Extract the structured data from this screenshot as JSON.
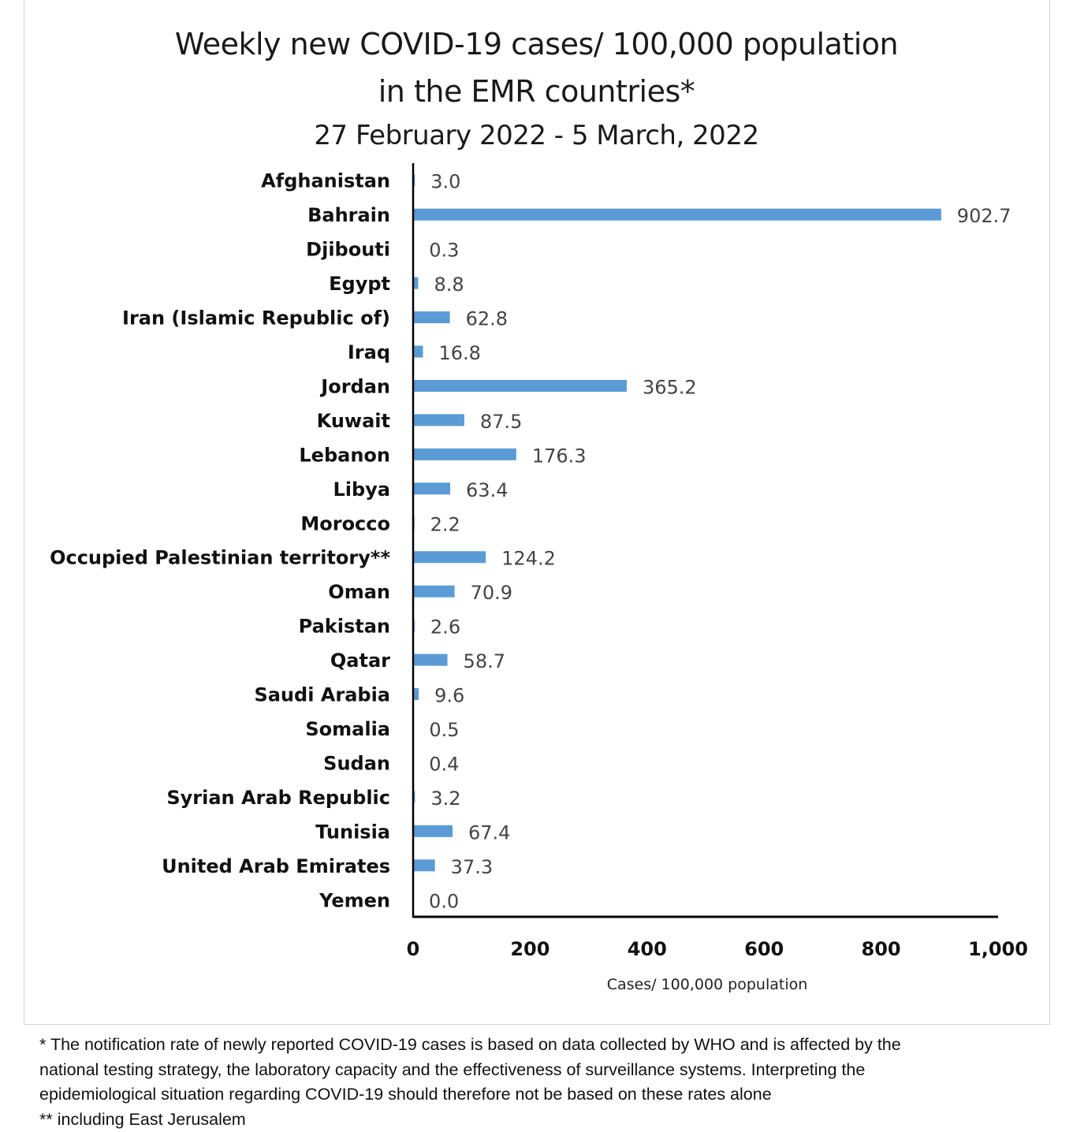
{
  "chart_data": {
    "type": "bar",
    "orientation": "horizontal",
    "title": "Weekly new COVID-19 cases/ 100,000 population",
    "title_line2": "in the EMR countries*",
    "subtitle": "27 February 2022 - 5 March, 2022",
    "xlabel": "Cases/ 100,000 population",
    "ylabel": "",
    "xlim": [
      0,
      1000
    ],
    "xticks": [
      0,
      200,
      400,
      600,
      800,
      1000
    ],
    "xtick_labels": [
      "0",
      "200",
      "400",
      "600",
      "800",
      "1,000"
    ],
    "grid": false,
    "bar_color": "#5b9bd5",
    "categories": [
      "Afghanistan",
      "Bahrain",
      "Djibouti",
      "Egypt",
      "Iran (Islamic Republic of)",
      "Iraq",
      "Jordan",
      "Kuwait",
      "Lebanon",
      "Libya",
      "Morocco",
      "Occupied Palestinian territory**",
      "Oman",
      "Pakistan",
      "Qatar",
      "Saudi Arabia",
      "Somalia",
      "Sudan",
      "Syrian Arab Republic",
      "Tunisia",
      "United Arab Emirates",
      "Yemen"
    ],
    "values": [
      3.0,
      902.7,
      0.3,
      8.8,
      62.8,
      16.8,
      365.2,
      87.5,
      176.3,
      63.4,
      2.2,
      124.2,
      70.9,
      2.6,
      58.7,
      9.6,
      0.5,
      0.4,
      3.2,
      67.4,
      37.3,
      0.0
    ],
    "value_labels": [
      "3.0",
      "902.7",
      "0.3",
      "8.8",
      "62.8",
      "16.8",
      "365.2",
      "87.5",
      "176.3",
      "63.4",
      "2.2",
      "124.2",
      "70.9",
      "2.6",
      "58.7",
      "9.6",
      "0.5",
      "0.4",
      "3.2",
      "67.4",
      "37.3",
      "0.0"
    ]
  },
  "footnotes": [
    "* The notification rate of newly reported COVID-19 cases is based on data collected by WHO and is affected by the",
    "national testing strategy, the laboratory capacity and the effectiveness of surveillance systems. Interpreting the",
    "epidemiological situation regarding COVID-19 should therefore not be based on these rates alone",
    "** including East Jerusalem"
  ]
}
